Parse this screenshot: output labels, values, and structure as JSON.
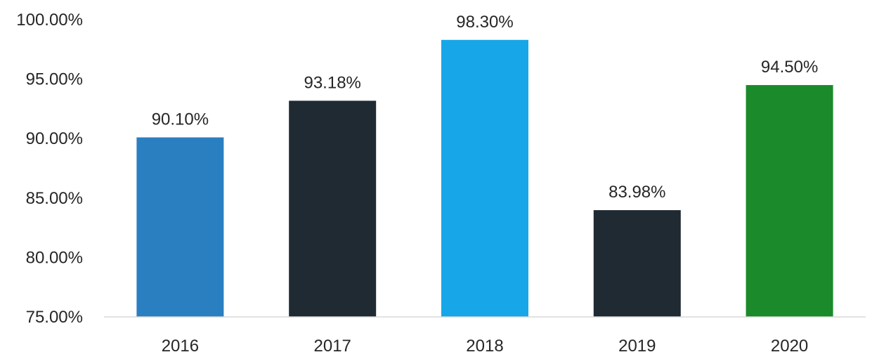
{
  "chart_data": {
    "type": "bar",
    "categories": [
      "2016",
      "2017",
      "2018",
      "2019",
      "2020"
    ],
    "values": [
      90.1,
      93.18,
      98.3,
      83.98,
      94.5
    ],
    "data_labels": [
      "90.10%",
      "93.18%",
      "98.30%",
      "83.98%",
      "94.50%"
    ],
    "bar_colors": [
      "#2a7fc1",
      "#1f2a33",
      "#17a6e8",
      "#1f2a33",
      "#1a8a2a"
    ],
    "ylim": [
      75,
      100
    ],
    "y_ticks": [
      75,
      80,
      85,
      90,
      95,
      100
    ],
    "y_tick_labels": [
      "75.00%",
      "80.00%",
      "85.00%",
      "90.00%",
      "95.00%",
      "100.00%"
    ],
    "grid": false,
    "legend": "none"
  }
}
